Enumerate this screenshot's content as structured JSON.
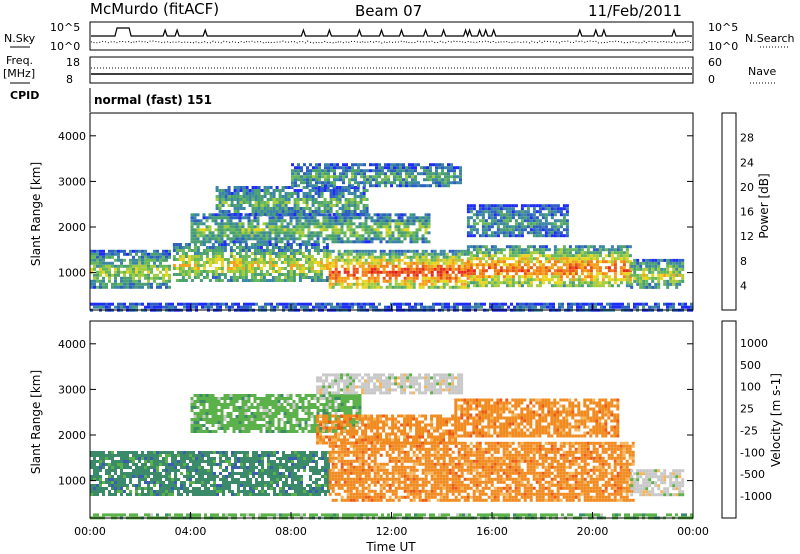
{
  "header": {
    "title": "McMurdo (fitACF)",
    "beam": "Beam 07",
    "date": "11/Feb/2011"
  },
  "summary_panels": {
    "nsky_label": "N.Sky",
    "nsky_ticks": [
      "10^5",
      "10^0"
    ],
    "nsearch_label": "N.Search",
    "nsearch_ticks": [
      "10^5",
      "10^0"
    ],
    "freq_label": "Freq.",
    "freq_unit": "[MHz]",
    "freq_ticks": [
      "18",
      "8"
    ],
    "nave_label": "Nave",
    "nave_ticks": [
      "60",
      "0"
    ],
    "cpid_label": "CPID",
    "cpid_value": "normal (fast) 151"
  },
  "chart_data": [
    {
      "type": "heatmap",
      "panel": "power",
      "ylabel": "Slant Range [km]",
      "ylim": [
        180,
        4500
      ],
      "y_ticks": [
        1000,
        2000,
        3000,
        4000
      ],
      "xlim_hours": [
        0,
        24
      ],
      "colorbar": {
        "label": "Power [dB]",
        "ticks": [
          "4",
          "8",
          "12",
          "16",
          "20",
          "24",
          "28"
        ],
        "colors": [
          "#1f2cf5",
          "#2d5fc2",
          "#3b86a6",
          "#4aa070",
          "#66b85a",
          "#a5cc3c",
          "#e9d51d",
          "#f4a21a",
          "#f17f17",
          "#e9541a",
          "#e52a1d",
          "#e3120f"
        ]
      },
      "bands": [
        {
          "t0": 0.0,
          "t1": 24.0,
          "r0": 190,
          "r1": 340,
          "level": 0.12
        },
        {
          "t0": 0.0,
          "t1": 3.2,
          "r0": 700,
          "r1": 1500,
          "level": 0.45
        },
        {
          "t0": 3.3,
          "t1": 9.5,
          "r0": 850,
          "r1": 1650,
          "level": 0.55
        },
        {
          "t0": 9.5,
          "t1": 15.0,
          "r0": 650,
          "r1": 1500,
          "level": 0.88
        },
        {
          "t0": 15.0,
          "t1": 21.5,
          "r0": 700,
          "r1": 1600,
          "level": 0.8
        },
        {
          "t0": 21.5,
          "t1": 23.6,
          "r0": 700,
          "r1": 1300,
          "level": 0.5
        },
        {
          "t0": 4.0,
          "t1": 13.5,
          "r0": 1700,
          "r1": 2300,
          "level": 0.42
        },
        {
          "t0": 5.0,
          "t1": 11.0,
          "r0": 2300,
          "r1": 2900,
          "level": 0.35
        },
        {
          "t0": 8.0,
          "t1": 14.8,
          "r0": 2900,
          "r1": 3400,
          "level": 0.3
        },
        {
          "t0": 15.0,
          "t1": 19.0,
          "r0": 1800,
          "r1": 2500,
          "level": 0.25
        }
      ]
    },
    {
      "type": "heatmap",
      "panel": "velocity",
      "ylabel": "Slant Range [km]",
      "xlabel": "Time UT",
      "ylim": [
        180,
        4500
      ],
      "y_ticks": [
        1000,
        2000,
        3000,
        4000
      ],
      "xlim_hours": [
        0,
        24
      ],
      "x_ticks": [
        "00:00",
        "04:00",
        "08:00",
        "12:00",
        "16:00",
        "20:00",
        "00:00"
      ],
      "colorbar": {
        "label": "Velocity [m s-1]",
        "ticks": [
          "1000",
          "500",
          "100",
          "25",
          "-25",
          "-100",
          "-500",
          "-1000"
        ],
        "colors": [
          "#1f3fd0",
          "#3a5fb0",
          "#3b8a6a",
          "#5cb24a",
          "#c8c8c8",
          "#f4b65b",
          "#f18a1f",
          "#eb5a16",
          "#e32a14"
        ]
      },
      "bands": [
        {
          "t0": 0.0,
          "t1": 24.0,
          "r0": 190,
          "r1": 280,
          "level": 3
        },
        {
          "t0": 0.0,
          "t1": 9.5,
          "r0": 700,
          "r1": 1650,
          "level": 2
        },
        {
          "t0": 9.5,
          "t1": 21.6,
          "r0": 600,
          "r1": 1850,
          "level": 6
        },
        {
          "t0": 4.0,
          "t1": 10.8,
          "r0": 2100,
          "r1": 2900,
          "level": 3
        },
        {
          "t0": 9.0,
          "t1": 14.5,
          "r0": 1800,
          "r1": 2450,
          "level": 6
        },
        {
          "t0": 9.0,
          "t1": 14.8,
          "r0": 2900,
          "r1": 3350,
          "level": 4
        },
        {
          "t0": 14.5,
          "t1": 21.0,
          "r0": 2000,
          "r1": 2800,
          "level": 6
        },
        {
          "t0": 21.5,
          "t1": 23.6,
          "r0": 700,
          "r1": 1250,
          "level": 4
        }
      ]
    }
  ]
}
